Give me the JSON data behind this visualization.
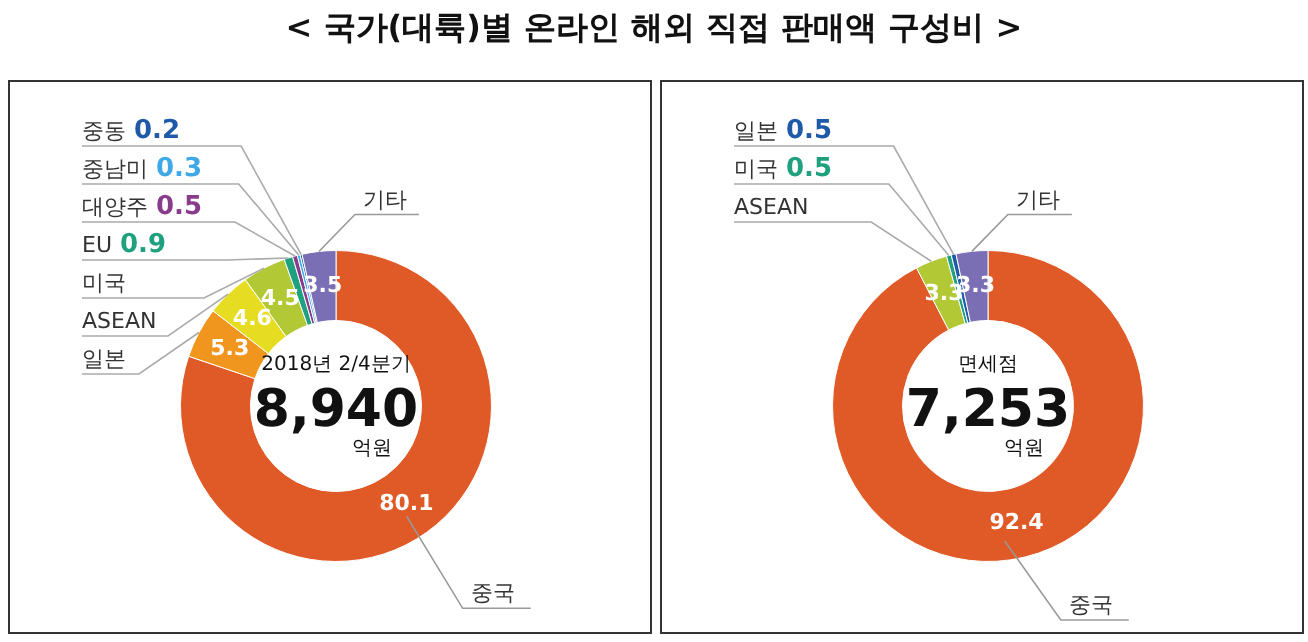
{
  "chart_data": [
    {
      "type": "donut",
      "title": "< 국가(대륙)별 온라인 해외 직접 판매액 구성비 >",
      "subtitle": "2018년 2/4분기",
      "annotations": [
        "8,940",
        "억원"
      ],
      "data_labels": true,
      "categories": [
        "중국",
        "일본",
        "ASEAN",
        "미국",
        "EU",
        "대양주",
        "중남미",
        "중동",
        "기타"
      ],
      "values": [
        80.1,
        5.3,
        4.6,
        4.5,
        0.9,
        0.5,
        0.3,
        0.2,
        3.5
      ],
      "colors": [
        "#e05a28",
        "#f0961e",
        "#e6dc22",
        "#b2c834",
        "#1fa07e",
        "#8a3c8c",
        "#3fa8e6",
        "#1e5aa8",
        "#7a6eb4"
      ]
    },
    {
      "type": "donut",
      "subtitle": "면세점",
      "annotations": [
        "7,253",
        "억원"
      ],
      "data_labels": true,
      "categories": [
        "중국",
        "ASEAN",
        "미국",
        "일본",
        "기타"
      ],
      "values": [
        92.4,
        3.3,
        0.5,
        0.5,
        3.3
      ],
      "colors": [
        "#e05a28",
        "#b2c834",
        "#1fa07e",
        "#1e5aa8",
        "#7a6eb4"
      ]
    }
  ]
}
